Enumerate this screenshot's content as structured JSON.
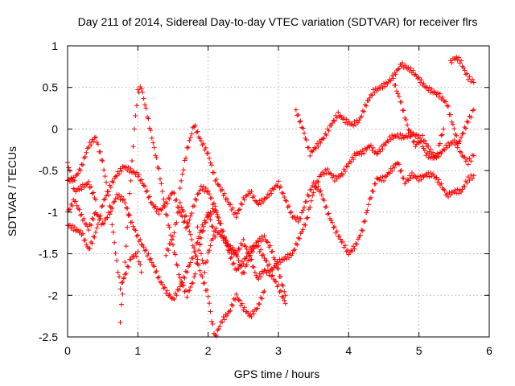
{
  "chart_data": {
    "type": "scatter",
    "title": "Day 211 of 2014, Sidereal Day-to-day VTEC variation (SDTVAR) for receiver flrs",
    "xlabel": "GPS time / hours",
    "ylabel": "SDTVAR / TECUs",
    "xlim": [
      0,
      6
    ],
    "ylim": [
      -2.5,
      1
    ],
    "xticks": [
      "0",
      "1",
      "2",
      "3",
      "4",
      "5",
      "6"
    ],
    "yticks": [
      "-2.5",
      "-2",
      "-1.5",
      "-1",
      "-0.5",
      "0",
      "0.5",
      "1"
    ],
    "grid": true,
    "marker": "+",
    "color": "#ff0000",
    "series": [
      {
        "name": "track-1",
        "points": [
          [
            0.0,
            -0.62
          ],
          [
            0.1,
            -0.6
          ],
          [
            0.2,
            -0.45
          ],
          [
            0.3,
            -0.2
          ],
          [
            0.4,
            -0.1
          ],
          [
            0.5,
            -0.4
          ],
          [
            0.6,
            -0.9
          ],
          [
            0.7,
            -1.6
          ],
          [
            0.75,
            -1.9
          ],
          [
            0.8,
            -1.8
          ],
          [
            0.9,
            -1.55
          ],
          [
            1.0,
            -1.5
          ],
          [
            1.05,
            -1.72
          ]
        ]
      },
      {
        "name": "track-2",
        "points": [
          [
            0.0,
            -0.4
          ],
          [
            0.1,
            -0.75
          ],
          [
            0.2,
            -0.7
          ],
          [
            0.3,
            -0.65
          ],
          [
            0.4,
            -0.85
          ]
        ]
      },
      {
        "name": "track-3",
        "points": [
          [
            0.0,
            -1.0
          ],
          [
            0.1,
            -0.85
          ],
          [
            0.2,
            -1.05
          ],
          [
            0.3,
            -1.2
          ],
          [
            0.4,
            -1.0
          ],
          [
            0.5,
            -1.15
          ],
          [
            0.6,
            -1.0
          ],
          [
            0.7,
            -0.8
          ],
          [
            0.8,
            -0.85
          ],
          [
            0.9,
            -1.1
          ],
          [
            1.0,
            -1.3
          ],
          [
            1.1,
            -1.45
          ],
          [
            1.2,
            -1.6
          ],
          [
            1.3,
            -1.8
          ],
          [
            1.4,
            -1.95
          ],
          [
            1.5,
            -2.05
          ],
          [
            1.6,
            -1.9
          ],
          [
            1.7,
            -1.7
          ],
          [
            1.8,
            -1.5
          ],
          [
            1.9,
            -1.2
          ],
          [
            2.0,
            -1.05
          ],
          [
            2.1,
            -0.95
          ],
          [
            2.2,
            -1.2
          ],
          [
            2.3,
            -1.5
          ],
          [
            2.4,
            -1.7
          ],
          [
            2.5,
            -1.6
          ],
          [
            2.6,
            -1.45
          ],
          [
            2.7,
            -1.4
          ],
          [
            2.8,
            -1.55
          ],
          [
            2.9,
            -1.7
          ],
          [
            3.0,
            -1.6
          ],
          [
            3.1,
            -1.55
          ],
          [
            3.2,
            -1.5
          ],
          [
            3.3,
            -1.3
          ],
          [
            3.4,
            -1.1
          ],
          [
            3.5,
            -0.75
          ],
          [
            3.6,
            -0.55
          ],
          [
            3.7,
            -0.5
          ],
          [
            3.8,
            -0.6
          ],
          [
            3.9,
            -0.55
          ],
          [
            4.0,
            -0.42
          ],
          [
            4.1,
            -0.3
          ],
          [
            4.2,
            -0.28
          ],
          [
            4.3,
            -0.2
          ],
          [
            4.4,
            -0.3
          ],
          [
            4.5,
            -0.2
          ],
          [
            4.6,
            -0.1
          ],
          [
            4.7,
            -0.08
          ],
          [
            4.8,
            -0.1
          ],
          [
            4.9,
            -0.05
          ],
          [
            5.0,
            -0.1
          ],
          [
            5.1,
            -0.3
          ],
          [
            5.2,
            -0.35
          ],
          [
            5.3,
            -0.3
          ],
          [
            5.4,
            -0.2
          ],
          [
            5.5,
            -0.15
          ],
          [
            5.55,
            -0.2
          ],
          [
            5.6,
            -0.1
          ],
          [
            5.7,
            0.1
          ],
          [
            5.78,
            0.23
          ]
        ]
      },
      {
        "name": "track-4",
        "points": [
          [
            0.0,
            -1.15
          ],
          [
            0.1,
            -1.2
          ],
          [
            0.2,
            -1.25
          ],
          [
            0.3,
            -1.45
          ],
          [
            0.4,
            -1.25
          ],
          [
            0.5,
            -0.9
          ],
          [
            0.6,
            -0.7
          ],
          [
            0.7,
            -0.55
          ],
          [
            0.8,
            -0.45
          ],
          [
            0.9,
            -0.5
          ],
          [
            1.0,
            -0.55
          ],
          [
            1.1,
            -0.7
          ],
          [
            1.2,
            -0.9
          ],
          [
            1.3,
            -1.0
          ],
          [
            1.4,
            -0.9
          ],
          [
            1.5,
            -0.75
          ],
          [
            1.6,
            -1.0
          ],
          [
            1.7,
            -1.2
          ],
          [
            1.8,
            -0.9
          ],
          [
            1.9,
            -0.7
          ],
          [
            2.0,
            -0.75
          ],
          [
            2.1,
            -0.95
          ],
          [
            2.2,
            -1.25
          ],
          [
            2.3,
            -1.45
          ],
          [
            2.4,
            -1.5
          ],
          [
            2.5,
            -1.35
          ],
          [
            2.6,
            -1.55
          ],
          [
            2.7,
            -1.8
          ],
          [
            2.8,
            -1.7
          ],
          [
            2.9,
            -1.75
          ],
          [
            3.0,
            -1.9
          ],
          [
            3.1,
            -2.1
          ]
        ]
      },
      {
        "name": "track-5",
        "points": [
          [
            0.75,
            -2.3
          ],
          [
            0.8,
            -1.8
          ],
          [
            0.85,
            -1.2
          ],
          [
            0.9,
            -0.6
          ],
          [
            0.95,
            0.0
          ],
          [
            1.0,
            0.45
          ],
          [
            1.05,
            0.5
          ],
          [
            1.1,
            0.3
          ],
          [
            1.2,
            -0.1
          ],
          [
            1.3,
            -0.5
          ],
          [
            1.4,
            -1.0
          ],
          [
            1.5,
            -1.4
          ],
          [
            1.6,
            -1.8
          ],
          [
            1.7,
            -2.0
          ],
          [
            1.8,
            -1.8
          ],
          [
            1.9,
            -1.3
          ],
          [
            2.0,
            -1.0
          ],
          [
            2.1,
            -1.3
          ]
        ]
      },
      {
        "name": "track-6",
        "points": [
          [
            1.6,
            -0.7
          ],
          [
            1.7,
            -0.25
          ],
          [
            1.8,
            0.05
          ],
          [
            1.9,
            -0.15
          ],
          [
            2.0,
            -0.3
          ],
          [
            2.1,
            -0.6
          ],
          [
            2.2,
            -0.75
          ],
          [
            2.3,
            -0.9
          ],
          [
            2.4,
            -1.05
          ],
          [
            2.5,
            -0.85
          ],
          [
            2.6,
            -0.75
          ],
          [
            2.7,
            -0.9
          ],
          [
            2.8,
            -0.85
          ],
          [
            2.9,
            -0.75
          ],
          [
            3.0,
            -0.65
          ],
          [
            3.1,
            -0.85
          ],
          [
            3.2,
            -1.05
          ],
          [
            3.3,
            -1.1
          ],
          [
            3.4,
            -0.85
          ],
          [
            3.5,
            -0.65
          ],
          [
            3.6,
            -0.75
          ],
          [
            3.7,
            -1.0
          ],
          [
            3.8,
            -1.2
          ],
          [
            3.9,
            -1.35
          ],
          [
            4.0,
            -1.5
          ],
          [
            4.1,
            -1.4
          ],
          [
            4.2,
            -1.2
          ],
          [
            4.3,
            -0.85
          ],
          [
            4.4,
            -0.6
          ],
          [
            4.5,
            -0.6
          ],
          [
            4.6,
            -0.5
          ],
          [
            4.7,
            -0.4
          ],
          [
            4.8,
            -0.65
          ],
          [
            4.9,
            -0.55
          ],
          [
            5.0,
            -0.6
          ],
          [
            5.1,
            -0.55
          ],
          [
            5.2,
            -0.55
          ],
          [
            5.3,
            -0.65
          ],
          [
            5.4,
            -0.8
          ],
          [
            5.5,
            -0.75
          ],
          [
            5.6,
            -0.75
          ],
          [
            5.7,
            -0.6
          ],
          [
            5.78,
            -0.56
          ]
        ]
      },
      {
        "name": "track-7",
        "points": [
          [
            1.4,
            -1.5
          ],
          [
            1.5,
            -1.3
          ],
          [
            1.6,
            -0.9
          ],
          [
            1.7,
            -1.1
          ],
          [
            1.8,
            -1.45
          ],
          [
            1.9,
            -1.75
          ],
          [
            2.0,
            -2.0
          ],
          [
            2.05,
            -2.3
          ],
          [
            2.1,
            -2.5
          ],
          [
            2.2,
            -2.3
          ],
          [
            2.3,
            -2.2
          ],
          [
            2.4,
            -2.0
          ],
          [
            2.5,
            -2.15
          ],
          [
            2.6,
            -2.25
          ],
          [
            2.7,
            -2.15
          ],
          [
            2.8,
            -1.95
          ]
        ]
      },
      {
        "name": "track-8",
        "points": [
          [
            1.85,
            -1.2
          ],
          [
            1.9,
            -1.5
          ],
          [
            1.95,
            -1.7
          ],
          [
            2.0,
            -1.5
          ],
          [
            2.1,
            -1.2
          ],
          [
            2.2,
            -1.3
          ],
          [
            2.3,
            -1.4
          ],
          [
            2.4,
            -1.5
          ],
          [
            2.5,
            -1.75
          ],
          [
            2.6,
            -1.5
          ],
          [
            2.7,
            -1.35
          ],
          [
            2.8,
            -1.3
          ],
          [
            2.9,
            -1.45
          ],
          [
            3.0,
            -1.7
          ],
          [
            3.1,
            -2.0
          ]
        ]
      },
      {
        "name": "track-9",
        "points": [
          [
            3.25,
            0.22
          ],
          [
            3.35,
            0.0
          ],
          [
            3.45,
            -0.3
          ],
          [
            3.55,
            -0.2
          ],
          [
            3.65,
            -0.1
          ],
          [
            3.75,
            0.05
          ],
          [
            3.85,
            0.18
          ],
          [
            3.95,
            0.1
          ],
          [
            4.05,
            0.05
          ],
          [
            4.15,
            0.1
          ],
          [
            4.25,
            0.3
          ],
          [
            4.35,
            0.45
          ],
          [
            4.45,
            0.5
          ],
          [
            4.55,
            0.55
          ],
          [
            4.65,
            0.65
          ],
          [
            4.75,
            0.78
          ],
          [
            4.8,
            0.75
          ],
          [
            4.9,
            0.7
          ],
          [
            5.0,
            0.6
          ],
          [
            5.1,
            0.5
          ],
          [
            5.2,
            0.45
          ],
          [
            5.3,
            0.4
          ],
          [
            5.4,
            0.3
          ],
          [
            5.5,
            0.0
          ],
          [
            5.6,
            -0.3
          ],
          [
            5.7,
            -0.4
          ],
          [
            5.78,
            -0.32
          ]
        ]
      },
      {
        "name": "track-10",
        "points": [
          [
            4.65,
            0.55
          ],
          [
            4.75,
            0.3
          ],
          [
            4.85,
            0.0
          ],
          [
            4.95,
            -0.2
          ],
          [
            5.05,
            -0.1
          ],
          [
            5.15,
            -0.25
          ],
          [
            5.25,
            -0.35
          ],
          [
            5.3,
            -0.15
          ],
          [
            5.35,
            0.0
          ]
        ]
      },
      {
        "name": "track-11",
        "points": [
          [
            5.45,
            0.8
          ],
          [
            5.5,
            0.85
          ],
          [
            5.55,
            0.85
          ],
          [
            5.6,
            0.8
          ],
          [
            5.65,
            0.7
          ],
          [
            5.7,
            0.62
          ],
          [
            5.78,
            0.56
          ]
        ]
      }
    ]
  }
}
